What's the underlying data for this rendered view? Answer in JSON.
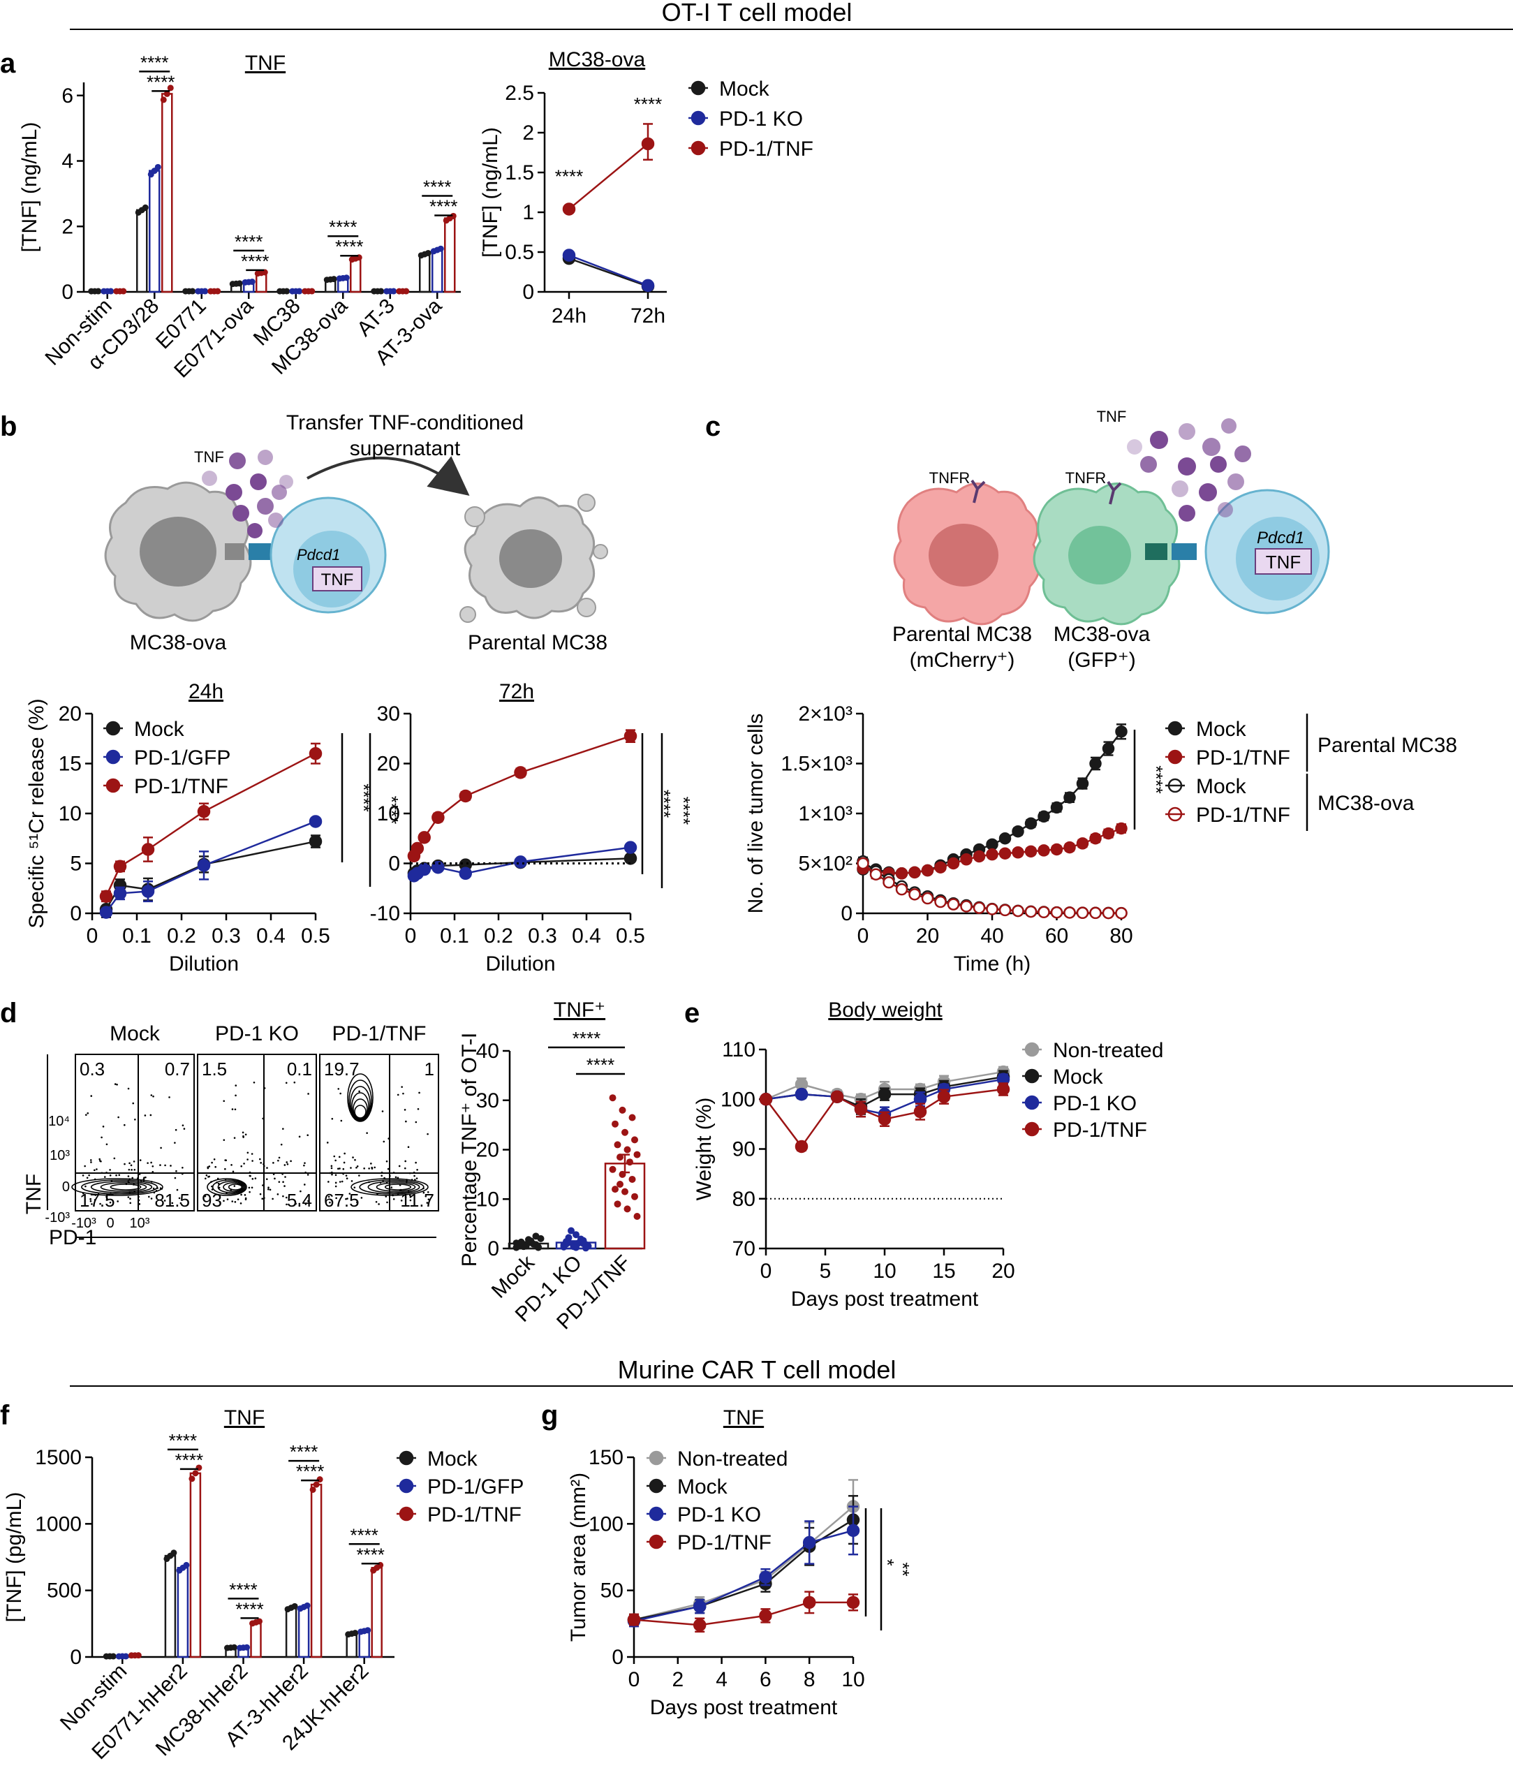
{
  "colors": {
    "mock": "#1a1a1a",
    "ko": "#1f2a9c",
    "tnf": "#9c1414",
    "nontreated": "#9a9a9a"
  },
  "sections": {
    "top": "OT-I T cell model",
    "bottom": "Murine CAR T cell model"
  },
  "panel_letters": [
    "a",
    "b",
    "c",
    "d",
    "e",
    "f",
    "g"
  ],
  "sig": {
    "s4": "****",
    "s2": "**",
    "s1": "*"
  },
  "axes": {
    "tnf_ngml": "[TNF] (ng/mL)",
    "tnf_pgml": "[TNF] (pg/mL)",
    "cr_release": "Specific ⁵¹Cr release (%)",
    "dilution": "Dilution",
    "live_cells": "No. of live tumor cells",
    "time_h": "Time (h)",
    "pct_tnf": "Percentage TNF⁺ of OT-I",
    "weight": "Weight (%)",
    "days": "Days post treatment",
    "tumor_area": "Tumor area (mm²)",
    "flow_tnf": "TNF",
    "flow_pd1": "PD-1"
  },
  "titles": {
    "a1": "TNF",
    "a2": "MC38-ova",
    "b24": "24h",
    "b72": "72h",
    "d": "TNF⁺",
    "e": "Body weight",
    "f": "TNF",
    "g": "TNF"
  },
  "legends": {
    "a": [
      "Mock",
      "PD-1 KO",
      "PD-1/TNF"
    ],
    "b": [
      "Mock",
      "PD-1/GFP",
      "PD-1/TNF"
    ],
    "c": [
      "Mock",
      "PD-1/TNF",
      "Mock",
      "PD-1/TNF"
    ],
    "c_groups": [
      "Parental MC38",
      "MC38-ova"
    ],
    "e": [
      "Non-treated",
      "Mock",
      "PD-1 KO",
      "PD-1/TNF"
    ],
    "f": [
      "Mock",
      "PD-1/GFP",
      "PD-1/TNF"
    ],
    "g": [
      "Non-treated",
      "Mock",
      "PD-1 KO",
      "PD-1/TNF"
    ]
  },
  "schematic_b": {
    "arrow_label_1": "Transfer TNF-conditioned",
    "arrow_label_2": "supernatant",
    "tnf": "TNF",
    "gene": "Pdcd1",
    "box": "TNF",
    "left_cell": "MC38-ova",
    "right_cell": "Parental MC38"
  },
  "schematic_c": {
    "tnf": "TNF",
    "tnfr1": "TNFR",
    "tnfr2": "TNFR",
    "cell1_a": "Parental MC38",
    "cell1_b": "(mCherry⁺)",
    "cell2_a": "MC38-ova",
    "cell2_b": "(GFP⁺)",
    "gene": "Pdcd1",
    "box": "TNF"
  },
  "flow": {
    "titles": [
      "Mock",
      "PD-1 KO",
      "PD-1/TNF"
    ],
    "quadrants": [
      [
        "0.3",
        "0.7",
        "17.5",
        "81.5"
      ],
      [
        "1.5",
        "0.1",
        "93",
        "5.4"
      ],
      [
        "19.7",
        "1",
        "67.5",
        "11.7"
      ]
    ],
    "y_ticks": [
      "10⁴",
      "10³",
      "0",
      "-10³"
    ],
    "x_ticks": [
      "-10³",
      "0",
      "10³"
    ]
  },
  "chart_data": [
    {
      "panel": "a-left",
      "type": "bar",
      "title": "TNF",
      "ylabel": "[TNF] (ng/mL)",
      "categories": [
        "Non-stim",
        "α-CD3/28",
        "E0771",
        "E0771-ova",
        "MC38",
        "MC38-ova",
        "AT-3",
        "AT-3-ova"
      ],
      "series": [
        {
          "name": "Mock",
          "values": [
            0.02,
            2.5,
            0.02,
            0.25,
            0.02,
            0.38,
            0.02,
            1.15
          ]
        },
        {
          "name": "PD-1 KO",
          "values": [
            0.02,
            3.7,
            0.02,
            0.3,
            0.02,
            0.42,
            0.02,
            1.28
          ]
        },
        {
          "name": "PD-1/TNF",
          "values": [
            0.02,
            6.05,
            0.02,
            0.58,
            0.02,
            1.02,
            0.02,
            2.25
          ]
        }
      ],
      "ylim": [
        0,
        6.4
      ],
      "yticks": [
        0,
        2,
        4,
        6
      ]
    },
    {
      "panel": "a-right",
      "type": "line",
      "title": "MC38-ova",
      "ylabel": "[TNF] (ng/mL)",
      "categories": [
        "24h",
        "72h"
      ],
      "series": [
        {
          "name": "Mock",
          "values": [
            0.42,
            0.07
          ]
        },
        {
          "name": "PD-1 KO",
          "values": [
            0.46,
            0.08
          ]
        },
        {
          "name": "PD-1/TNF",
          "values": [
            1.04,
            1.86
          ]
        }
      ],
      "ylim": [
        0,
        2.5
      ],
      "yticks": [
        0,
        0.5,
        1,
        1.5,
        2,
        2.5
      ]
    },
    {
      "panel": "b-24h",
      "type": "line",
      "title": "24h",
      "xlabel": "Dilution",
      "ylabel": "Specific ⁵¹Cr release (%)",
      "x": [
        0.03125,
        0.0625,
        0.125,
        0.25,
        0.5
      ],
      "series": [
        {
          "name": "Mock",
          "values": [
            0.4,
            2.8,
            2.4,
            4.9,
            7.2
          ]
        },
        {
          "name": "PD-1/GFP",
          "values": [
            0.1,
            2.0,
            2.2,
            4.8,
            9.2
          ]
        },
        {
          "name": "PD-1/TNF",
          "values": [
            1.7,
            4.7,
            6.4,
            10.2,
            16.0
          ]
        }
      ],
      "xlim": [
        0,
        0.5
      ],
      "ylim": [
        0,
        20
      ],
      "xticks": [
        0,
        0.1,
        0.2,
        0.3,
        0.4,
        0.5
      ],
      "yticks": [
        0,
        5,
        10,
        15,
        20
      ]
    },
    {
      "panel": "b-72h",
      "type": "line",
      "title": "72h",
      "xlabel": "Dilution",
      "x": [
        0.0078,
        0.0156,
        0.03125,
        0.0625,
        0.125,
        0.25,
        0.5
      ],
      "series": [
        {
          "name": "Mock",
          "values": [
            -2.0,
            -1.5,
            -1.0,
            -0.5,
            -0.3,
            0.2,
            1.0
          ]
        },
        {
          "name": "PD-1/GFP",
          "values": [
            -2.5,
            -2.0,
            -1.2,
            -0.8,
            -2.0,
            0.3,
            3.2
          ]
        },
        {
          "name": "PD-1/TNF",
          "values": [
            1.5,
            3.0,
            5.2,
            9.2,
            13.5,
            18.2,
            25.5
          ]
        }
      ],
      "xlim": [
        0,
        0.5
      ],
      "ylim": [
        -10,
        30
      ],
      "xticks": [
        0,
        0.1,
        0.2,
        0.3,
        0.4,
        0.5
      ],
      "yticks": [
        -10,
        0,
        10,
        20,
        30
      ]
    },
    {
      "panel": "c",
      "type": "line",
      "xlabel": "Time (h)",
      "ylabel": "No. of live tumor cells",
      "x": [
        0,
        4,
        8,
        12,
        16,
        20,
        24,
        28,
        32,
        36,
        40,
        44,
        48,
        52,
        56,
        60,
        64,
        68,
        72,
        76,
        80
      ],
      "series": [
        {
          "name": "Mock",
          "values": [
            440,
            440,
            410,
            400,
            410,
            430,
            480,
            540,
            590,
            640,
            690,
            750,
            820,
            900,
            970,
            1060,
            1160,
            1300,
            1500,
            1650,
            1820
          ]
        },
        {
          "name": "PD-1/TNF",
          "values": [
            450,
            420,
            400,
            400,
            410,
            430,
            460,
            500,
            540,
            570,
            590,
            600,
            610,
            620,
            630,
            640,
            660,
            700,
            750,
            800,
            850
          ]
        },
        {
          "name": "Mock",
          "values": [
            520,
            420,
            340,
            270,
            210,
            170,
            130,
            100,
            80,
            60,
            45,
            35,
            25,
            18,
            14,
            10,
            8,
            6,
            5,
            4,
            3
          ]
        },
        {
          "name": "PD-1/TNF",
          "values": [
            500,
            390,
            310,
            240,
            190,
            150,
            115,
            90,
            70,
            55,
            42,
            32,
            24,
            17,
            12,
            9,
            7,
            5,
            4,
            3,
            2
          ]
        }
      ],
      "xlim": [
        0,
        80
      ],
      "ylim": [
        0,
        2000
      ],
      "xticks": [
        0,
        20,
        40,
        60,
        80
      ],
      "yticks": [
        0,
        500,
        1000,
        1500,
        2000
      ],
      "ytick_labels": [
        "0",
        "5×10²",
        "1×10³",
        "1.5×10³",
        "2×10³"
      ]
    },
    {
      "panel": "d-right",
      "type": "bar",
      "title": "TNF⁺",
      "ylabel": "Percentage TNF⁺ of OT-I",
      "categories": [
        "Mock",
        "PD-1 KO",
        "PD-1/TNF"
      ],
      "values": [
        1.0,
        1.2,
        17.2
      ],
      "points": [
        [
          0.2,
          0.5,
          0.8,
          1.0,
          1.2,
          0.3,
          0.6,
          1.5,
          2.0,
          0.4,
          0.9,
          1.1,
          0.7,
          2.5,
          0.5,
          1.8,
          0.2,
          1.3
        ],
        [
          0.3,
          0.6,
          1.0,
          1.4,
          0.2,
          0.8,
          2.2,
          1.1,
          0.5,
          3.6,
          1.9,
          0.7,
          0.4,
          1.6,
          0.9,
          2.8,
          0.1,
          1.2
        ],
        [
          30.5,
          28.0,
          26.5,
          25.2,
          23.5,
          22.0,
          21.0,
          20.0,
          19.0,
          18.5,
          17.5,
          16.0,
          15.0,
          14.0,
          12.0,
          11.5,
          10.5,
          9.0,
          8.0,
          6.5,
          13.0
        ]
      ],
      "ylim": [
        0,
        40
      ],
      "yticks": [
        0,
        10,
        20,
        30,
        40
      ]
    },
    {
      "panel": "e",
      "type": "line",
      "title": "Body weight",
      "xlabel": "Days post treatment",
      "ylabel": "Weight (%)",
      "x": [
        0,
        3,
        6,
        8,
        10,
        13,
        15,
        20
      ],
      "series": [
        {
          "name": "Non-treated",
          "values": [
            100,
            103,
            101,
            100,
            102,
            102,
            103.5,
            105.5
          ]
        },
        {
          "name": "Mock",
          "values": [
            100,
            101,
            100.5,
            98.5,
            101,
            101,
            102.5,
            104.5
          ]
        },
        {
          "name": "PD-1 KO",
          "values": [
            100,
            101,
            100.5,
            98,
            97,
            100,
            102,
            104
          ]
        },
        {
          "name": "PD-1/TNF",
          "values": [
            100,
            90.5,
            100.5,
            98,
            96,
            97.5,
            100.5,
            102
          ]
        }
      ],
      "xlim": [
        0,
        20
      ],
      "ylim": [
        70,
        110
      ],
      "xticks": [
        0,
        5,
        10,
        15,
        20
      ],
      "yticks": [
        70,
        80,
        90,
        100,
        110
      ],
      "reference_line": 80
    },
    {
      "panel": "f",
      "type": "bar",
      "title": "TNF",
      "ylabel": "[TNF] (pg/mL)",
      "categories": [
        "Non-stim",
        "E0771-hHer2",
        "MC38-hHer2",
        "AT-3-hHer2",
        "24JK-hHer2"
      ],
      "series": [
        {
          "name": "Mock",
          "values": [
            5,
            760,
            70,
            370,
            175
          ]
        },
        {
          "name": "PD-1/GFP",
          "values": [
            5,
            670,
            70,
            375,
            195
          ]
        },
        {
          "name": "PD-1/TNF",
          "values": [
            12,
            1380,
            260,
            1295,
            670
          ]
        }
      ],
      "ylim": [
        0,
        1500
      ],
      "yticks": [
        0,
        500,
        1000,
        1500
      ]
    },
    {
      "panel": "g",
      "type": "line",
      "title": "TNF",
      "xlabel": "Days post treatment",
      "ylabel": "Tumor area (mm²)",
      "x": [
        0,
        3,
        6,
        8,
        10
      ],
      "series": [
        {
          "name": "Non-treated",
          "values": [
            28,
            40,
            58,
            85,
            113
          ]
        },
        {
          "name": "Mock",
          "values": [
            28,
            38,
            55,
            83,
            103
          ]
        },
        {
          "name": "PD-1 KO",
          "values": [
            27,
            38,
            60,
            86,
            95
          ]
        },
        {
          "name": "PD-1/TNF",
          "values": [
            28,
            24,
            31,
            41,
            41
          ]
        }
      ],
      "xlim": [
        0,
        10
      ],
      "ylim": [
        0,
        150
      ],
      "xticks": [
        0,
        2,
        4,
        6,
        8,
        10
      ],
      "yticks": [
        0,
        50,
        100,
        150
      ]
    }
  ]
}
